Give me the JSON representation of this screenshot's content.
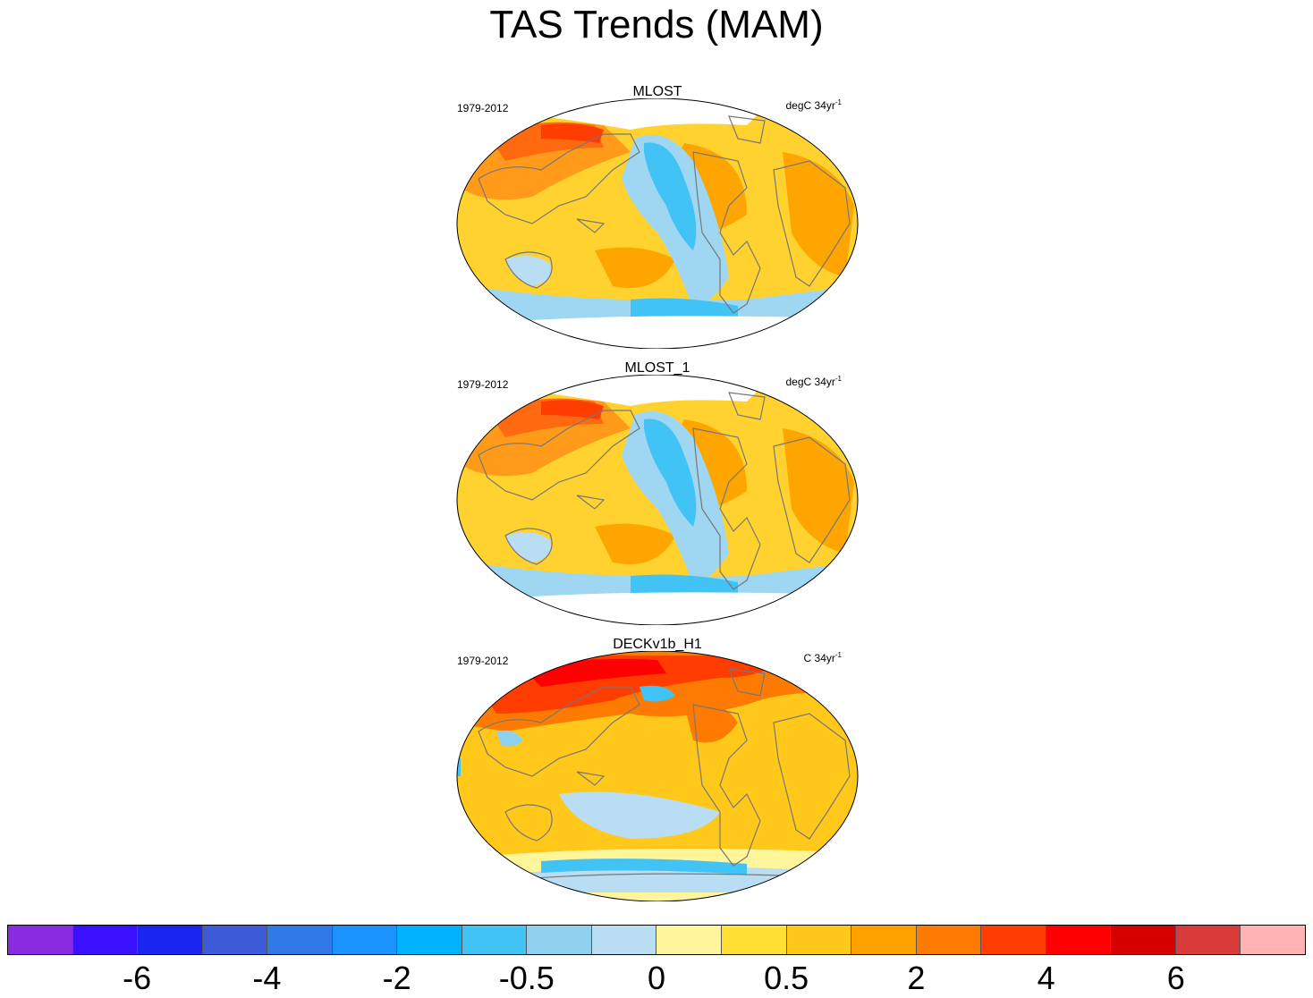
{
  "title": "TAS Trends (MAM)",
  "panels": [
    {
      "name": "MLOST",
      "period": "1979-2012",
      "units": "degC 34yr",
      "units_sup": "-1"
    },
    {
      "name": "MLOST_1",
      "period": "1979-2012",
      "units": "degC 34yr",
      "units_sup": "-1"
    },
    {
      "name": "DECKv1b_H1",
      "period": "1979-2012",
      "units": "C 34yr",
      "units_sup": "-1"
    }
  ],
  "colorbar": {
    "colors": [
      "#8a2be2",
      "#3a10ff",
      "#1a25f0",
      "#3d5ad9",
      "#2f78e6",
      "#1b93ff",
      "#00b2ff",
      "#42c3f5",
      "#8fd0ee",
      "#b9def3",
      "#fff59a",
      "#ffe033",
      "#ffc81a",
      "#ffa200",
      "#ff7a00",
      "#ff3d00",
      "#ff0000",
      "#d60000",
      "#d93b3b",
      "#ffb3b3"
    ],
    "tick_labels": [
      "-6",
      "-4",
      "-2",
      "-0.5",
      "0",
      "0.5",
      "2",
      "4",
      "6"
    ]
  }
}
